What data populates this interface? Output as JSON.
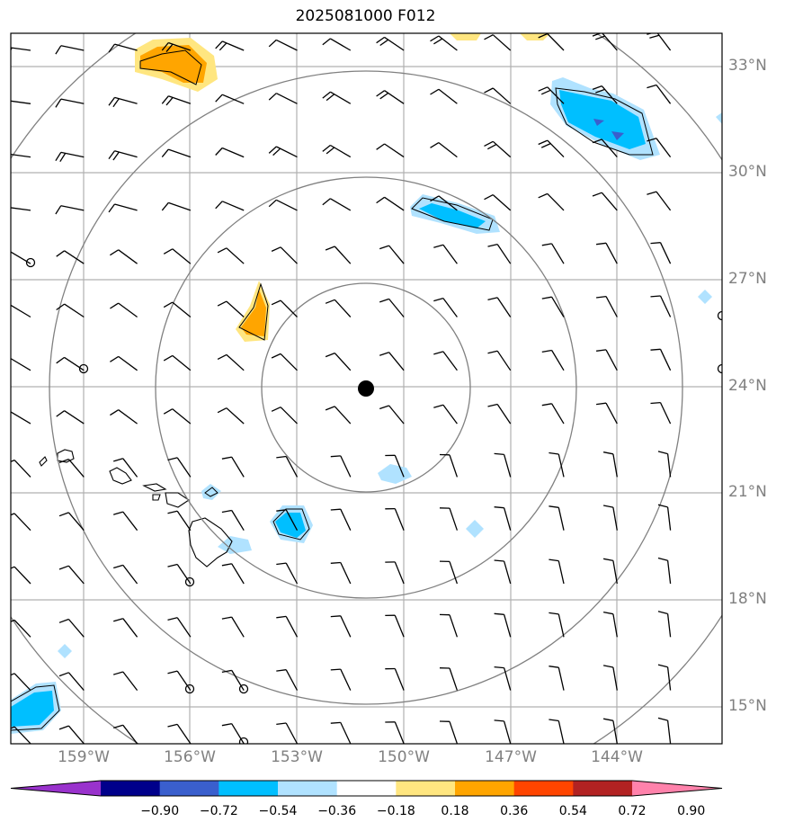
{
  "title": "2025081000 F012",
  "lat_labels": [
    "33°N",
    "30°N",
    "27°N",
    "24°N",
    "21°N",
    "18°N",
    "15°N"
  ],
  "lon_labels": [
    "159°W",
    "156°W",
    "153°W",
    "150°W",
    "147°W",
    "144°W"
  ],
  "colorbar": {
    "ticks": [
      "−0.90",
      "−0.72",
      "−0.54",
      "−0.36",
      "−0.18",
      "0.18",
      "0.36",
      "0.54",
      "0.72",
      "0.90"
    ],
    "colors": [
      "#9932cc",
      "#00008b",
      "#3a5fcd",
      "#00bfff",
      "#b0e2ff",
      "#ffffff",
      "#ffe680",
      "#ffa500",
      "#ff4500",
      "#b22222",
      "#ff82ab"
    ]
  },
  "map": {
    "center_marker": "storm-center-dot",
    "frame_color": "#000000",
    "grid_color": "#b0b0b0",
    "ring_color": "#808080"
  }
}
